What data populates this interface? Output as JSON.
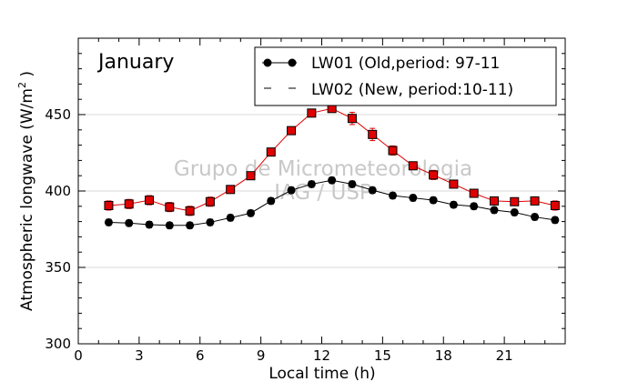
{
  "chart_data": {
    "type": "line",
    "annotation": "January",
    "watermark": [
      "Grupo de Micrometeorologia",
      "IAG / USP"
    ],
    "xlabel": "Local time (h)",
    "ylabel": "Atmospheric longwave (W/m",
    "ylabel_sup": "2",
    "ylabel_end": " )",
    "xlim": [
      0,
      24
    ],
    "ylim": [
      300,
      500
    ],
    "xticks": [
      0,
      3,
      6,
      9,
      12,
      15,
      18,
      21
    ],
    "yticks": [
      300,
      350,
      400,
      450
    ],
    "grid": "horizontal",
    "legend_position": "top-right",
    "x": [
      1.5,
      2.5,
      3.5,
      4.5,
      5.5,
      6.5,
      7.5,
      8.5,
      9.5,
      10.5,
      11.5,
      12.5,
      13.5,
      14.5,
      15.5,
      16.5,
      17.5,
      18.5,
      19.5,
      20.5,
      21.5,
      22.5,
      23.5
    ],
    "series": [
      {
        "name": "LW01 (Old,period: 97-11",
        "color": "#000000",
        "marker": "circle",
        "values": [
          379.5,
          379,
          378,
          377.5,
          377.5,
          379.5,
          382.5,
          385.5,
          393.5,
          400.5,
          404.5,
          407,
          404.5,
          400.5,
          397,
          395.5,
          394,
          391,
          390,
          387.5,
          386,
          383,
          381
        ],
        "errors": [
          2,
          2,
          2,
          2,
          2,
          2,
          2,
          2,
          2,
          2,
          2,
          2,
          2,
          2,
          2,
          2,
          2,
          2,
          2,
          2,
          2,
          2,
          2
        ]
      },
      {
        "name": "LW02 (New, period:10-11)",
        "color": "#e00000",
        "marker": "square",
        "values": [
          390.5,
          391.5,
          394,
          389.5,
          387,
          393,
          401,
          410,
          425.5,
          439.5,
          451,
          454,
          447.5,
          437,
          426.5,
          416.5,
          410.5,
          404.5,
          398.5,
          393.5,
          393,
          393.5,
          390.5
        ],
        "errors": [
          3,
          3,
          3,
          3,
          3,
          3,
          2,
          2,
          2,
          2,
          2,
          2,
          4,
          4,
          3,
          2,
          3,
          2,
          2,
          2,
          2,
          2,
          3
        ]
      }
    ]
  }
}
